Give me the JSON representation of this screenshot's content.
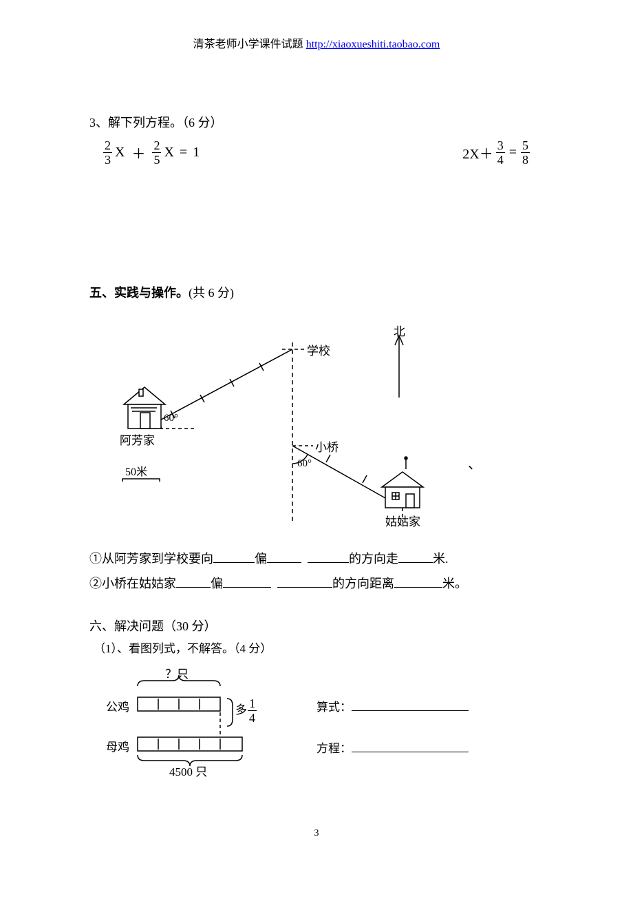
{
  "header": {
    "prefix": "清茶老师小学课件试题 ",
    "link_text": "http://xiaoxueshiti.taobao.com",
    "link_color": "#0000ee"
  },
  "q3": {
    "title": "3、解下列方程。（6 分）",
    "eq1": {
      "f1_num": "2",
      "f1_den": "3",
      "var1": "X",
      "plus": "＋",
      "f2_num": "2",
      "f2_den": "5",
      "var2": "X",
      "eq": "=",
      "rhs": "1"
    },
    "eq2": {
      "lhs": "2X＋",
      "f1_num": "3",
      "f1_den": "4",
      "eq": "=",
      "f2_num": "5",
      "f2_den": "8"
    }
  },
  "section5": {
    "title_bold": "五、实践与操作。",
    "title_rest": "(共 6 分)",
    "labels": {
      "north": "北",
      "school": "学校",
      "afang": "阿芳家",
      "bridge": "小桥",
      "gugu": "姑姑家",
      "angle1": "60°",
      "angle2": "60°",
      "scale": "50米",
      "comma": "、"
    },
    "line1": {
      "p1": "①从阿芳家到学校要向",
      "b1_w": 60,
      "p2": "偏",
      "b2_w": 50,
      "p3": " ",
      "b3_w": 60,
      "p4": "的方向走",
      "b4_w": 50,
      "p5": "米."
    },
    "line2": {
      "p1": "②小桥在姑姑家",
      "b1_w": 50,
      "p2": "偏",
      "b2_w": 70,
      "p3": " ",
      "b3_w": 80,
      "p4": "的方向距离",
      "b4_w": 70,
      "p5": "米。"
    }
  },
  "section6": {
    "title": "六、解决问题（30 分）",
    "sub": "（1）、看图列式，不解答。（4 分）",
    "labels": {
      "qmark": "？只",
      "rooster": "公鸡",
      "hen": "母鸡",
      "hen_count": "4500 只",
      "more": "多",
      "frac_num": "1",
      "frac_den": "4",
      "expr": "算式：",
      "eqn": "方程："
    },
    "blank_w": 170
  },
  "pagenum": "3",
  "colors": {
    "text": "#000000",
    "bg": "#ffffff"
  }
}
